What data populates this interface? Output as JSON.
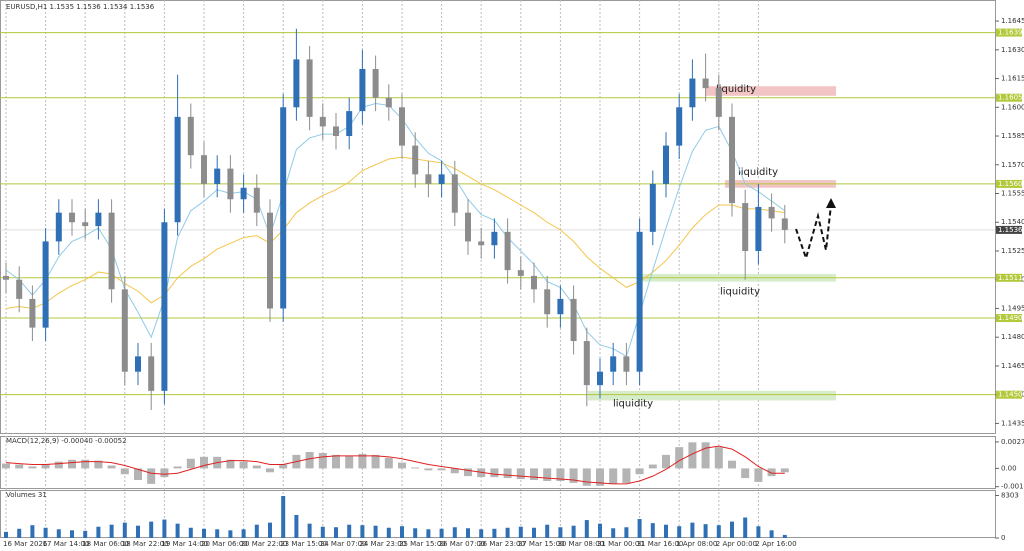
{
  "chart_data": [
    {
      "type": "candlestick",
      "title": "EURUSD,H1  1.1535 1.1536 1.1534 1.1536",
      "categories": [
        "16 Mar 2026",
        null,
        null,
        "17 Mar 14:00",
        null,
        null,
        "18 Mar 06:00",
        null,
        null,
        "18 Mar 22:00",
        null,
        null,
        "19 Mar 14:00",
        null,
        null,
        "20 Mar 06:00",
        null,
        null,
        "20 Mar 22:00",
        null,
        null,
        "23 Mar 15:00",
        null,
        null,
        "24 Mar 07:00",
        null,
        null,
        "24 Mar 23:00",
        null,
        null,
        "25 Mar 15:00",
        null,
        null,
        "26 Mar 07:00",
        null,
        null,
        "26 Mar 23:00",
        null,
        null,
        "27 Mar 15:00",
        null,
        null,
        "30 Mar 08:00",
        null,
        null,
        "31 Mar 00:00",
        null,
        null,
        "31 Mar 16:00",
        null,
        null,
        "1 Apr 08:00",
        null,
        null,
        "2 Apr 00:00",
        null,
        null,
        "2 Apr 16:00",
        null,
        null
      ],
      "open": [
        1.1512,
        1.151,
        1.15,
        1.1485,
        1.153,
        1.1545,
        1.154,
        1.1538,
        1.1545,
        1.1505,
        1.1462,
        1.147,
        1.1452,
        1.154,
        1.1595,
        1.1575,
        1.156,
        1.1568,
        1.1552,
        1.1558,
        1.1545,
        1.1495,
        1.16,
        1.1625,
        1.1595,
        1.159,
        1.1585,
        1.1598,
        1.162,
        1.1605,
        1.16,
        1.158,
        1.1565,
        1.156,
        1.1565,
        1.1545,
        1.153,
        1.1528,
        1.1535,
        1.1515,
        1.1512,
        1.1505,
        1.1492,
        1.15,
        1.1478,
        1.1455,
        1.1462,
        1.147,
        1.1462,
        1.1535,
        1.156,
        1.158,
        1.16,
        1.1615,
        1.161,
        1.1595,
        1.155,
        1.1525,
        1.1548,
        1.1542
      ],
      "high": [
        1.1519,
        1.1517,
        1.1507,
        1.1537,
        1.1552,
        1.1552,
        1.1547,
        1.1552,
        1.1552,
        1.1512,
        1.1477,
        1.1477,
        1.1547,
        1.1617,
        1.1602,
        1.1582,
        1.1575,
        1.1575,
        1.1565,
        1.1565,
        1.1552,
        1.1607,
        1.1641,
        1.1632,
        1.1602,
        1.1597,
        1.1605,
        1.163,
        1.1627,
        1.1612,
        1.1607,
        1.1587,
        1.1572,
        1.1572,
        1.1572,
        1.1552,
        1.1537,
        1.1542,
        1.1542,
        1.1522,
        1.1519,
        1.1512,
        1.1507,
        1.1507,
        1.1485,
        1.1469,
        1.1477,
        1.1477,
        1.1542,
        1.1567,
        1.1587,
        1.1607,
        1.1625,
        1.1628,
        1.1617,
        1.1602,
        1.1557,
        1.156,
        1.1555,
        1.1549
      ],
      "low": [
        1.1503,
        1.1493,
        1.1478,
        1.1478,
        1.1523,
        1.1533,
        1.1531,
        1.1531,
        1.1498,
        1.1455,
        1.1455,
        1.1442,
        1.1445,
        1.1533,
        1.1568,
        1.1553,
        1.1553,
        1.1545,
        1.1545,
        1.1538,
        1.1488,
        1.1488,
        1.1593,
        1.1588,
        1.1583,
        1.1578,
        1.1578,
        1.1591,
        1.1598,
        1.1593,
        1.1573,
        1.1558,
        1.1553,
        1.1553,
        1.1538,
        1.1523,
        1.1521,
        1.1521,
        1.1508,
        1.1505,
        1.1498,
        1.1485,
        1.1485,
        1.1471,
        1.1444,
        1.1448,
        1.1455,
        1.1455,
        1.1455,
        1.1528,
        1.1553,
        1.1573,
        1.1593,
        1.1603,
        1.1588,
        1.1543,
        1.151,
        1.1518,
        1.1535,
        1.1529
      ],
      "close": [
        1.151,
        1.15,
        1.1485,
        1.153,
        1.1545,
        1.154,
        1.1538,
        1.1545,
        1.1505,
        1.1462,
        1.147,
        1.1452,
        1.154,
        1.1595,
        1.1575,
        1.156,
        1.1568,
        1.1552,
        1.1558,
        1.1545,
        1.1495,
        1.16,
        1.1625,
        1.1595,
        1.159,
        1.1585,
        1.1598,
        1.162,
        1.1605,
        1.16,
        1.158,
        1.1565,
        1.156,
        1.1565,
        1.1545,
        1.153,
        1.1528,
        1.1535,
        1.1515,
        1.1512,
        1.1505,
        1.1492,
        1.15,
        1.1478,
        1.1455,
        1.1462,
        1.147,
        1.1462,
        1.1535,
        1.156,
        1.158,
        1.16,
        1.1615,
        1.161,
        1.1595,
        1.155,
        1.1525,
        1.1548,
        1.1542,
        1.1536
      ],
      "up_color": "#2e6fb5",
      "down_color": "#8c8c8c",
      "ma_fast": {
        "color": "#8fcbe6",
        "values": [
          1.1515,
          1.151,
          1.1502,
          1.151,
          1.1522,
          1.153,
          1.1533,
          1.1537,
          1.1526,
          1.1505,
          1.1493,
          1.148,
          1.15,
          1.1532,
          1.1546,
          1.1551,
          1.1557,
          1.1555,
          1.1556,
          1.1552,
          1.1533,
          1.1555,
          1.1578,
          1.1584,
          1.1586,
          1.1586,
          1.159,
          1.16,
          1.1602,
          1.1601,
          1.1594,
          1.1584,
          1.1576,
          1.1572,
          1.1563,
          1.1552,
          1.1544,
          1.1541,
          1.1532,
          1.1525,
          1.1518,
          1.1509,
          1.1506,
          1.1497,
          1.1483,
          1.1476,
          1.1474,
          1.147,
          1.1492,
          1.1515,
          1.1537,
          1.1558,
          1.1577,
          1.1588,
          1.159,
          1.1577,
          1.156,
          1.1556,
          1.1551,
          1.1546
        ]
      },
      "ma_slow": {
        "color": "#f3c54a",
        "values": [
          1.1495,
          1.1496,
          1.1495,
          1.1498,
          1.1503,
          1.1507,
          1.151,
          1.1514,
          1.1513,
          1.1508,
          1.1504,
          1.1498,
          1.1502,
          1.1511,
          1.1517,
          1.1521,
          1.1526,
          1.1529,
          1.1532,
          1.1533,
          1.1529,
          1.1536,
          1.1545,
          1.155,
          1.1554,
          1.1557,
          1.1561,
          1.1567,
          1.157,
          1.1573,
          1.1574,
          1.1573,
          1.1572,
          1.1571,
          1.1568,
          1.1564,
          1.156,
          1.1557,
          1.1553,
          1.1549,
          1.1545,
          1.154,
          1.1536,
          1.153,
          1.1522,
          1.1516,
          1.1511,
          1.1506,
          1.1509,
          1.1514,
          1.152,
          1.1528,
          1.1537,
          1.1544,
          1.1549,
          1.1549,
          1.1547,
          1.1547,
          1.1546,
          1.1545
        ]
      },
      "ylim": [
        1.143,
        1.1656
      ],
      "yticks": [
        1.1645,
        {
          "value": 1.163,
          "label": "1.1630"
        },
        1.1615,
        {
          "value": 1.16,
          "label": "1.1600"
        },
        1.1585,
        {
          "value": 1.157,
          "label": "1.1570"
        },
        1.1555,
        {
          "value": 1.154,
          "label": "1.1540"
        },
        1.1525,
        {
          "value": 1.151,
          "label": "1.1510"
        },
        1.1495,
        {
          "value": 1.148,
          "label": "1.1480"
        },
        1.1465,
        {
          "value": 1.145,
          "label": "1.1450"
        },
        1.1435
      ],
      "levels": [
        1.1639,
        1.1605,
        {
          "value": 1.156,
          "label": "1.1560"
        },
        1.1511,
        {
          "value": 1.149,
          "label": "1.1490"
        },
        {
          "value": 1.145,
          "label": "1.1450"
        }
      ],
      "level_color": "#b3c83a",
      "current": 1.1536,
      "zones": [
        {
          "label": "liquidity",
          "low": 1.1606,
          "high": 1.1611,
          "color": "#f2c4c4"
        },
        {
          "label": "liquidity",
          "low": 1.1558,
          "high": 1.1562,
          "color": "#f2c4c4"
        },
        {
          "label": "liquidity",
          "low": 1.1509,
          "high": 1.1513,
          "color": "#d6eccb"
        },
        {
          "label": "liquidity",
          "low": 1.1447,
          "high": 1.1452,
          "color": "#d6eccb"
        }
      ]
    },
    {
      "type": "macd",
      "title": "MACD(12,26,9) -0.00040 -0.00052",
      "values": [
        0.0005,
        0.0004,
        0.0002,
        0.0004,
        0.0007,
        0.0009,
        0.0009,
        0.0008,
        0.0003,
        -0.0006,
        -0.0012,
        -0.0016,
        -0.0009,
        0.0002,
        0.001,
        0.0012,
        0.0012,
        0.0009,
        0.0007,
        0.0003,
        -0.0004,
        0.0004,
        0.0014,
        0.0017,
        0.0016,
        0.0014,
        0.0013,
        0.0015,
        0.0014,
        0.0011,
        0.0006,
        0.0001,
        -0.0002,
        -0.0002,
        -0.0005,
        -0.0008,
        -0.0009,
        -0.0009,
        -0.001,
        -0.0011,
        -0.0012,
        -0.0013,
        -0.0013,
        -0.0015,
        -0.0018,
        -0.0018,
        -0.0016,
        -0.0015,
        -0.0006,
        0.0004,
        0.0014,
        0.0022,
        0.0027,
        0.0027,
        0.0022,
        0.0008,
        -0.001,
        -0.0014,
        -0.0008,
        -0.0004
      ],
      "color": "#b4b4b4",
      "signal": {
        "color": "#e02020",
        "values": [
          0.0006,
          0.0005,
          0.0004,
          0.0004,
          0.0005,
          0.0006,
          0.0007,
          0.0007,
          0.0006,
          0.0003,
          -0.0001,
          -0.0005,
          -0.0006,
          -0.0005,
          -0.0001,
          0.0003,
          0.0006,
          0.0008,
          0.0008,
          0.0007,
          0.0004,
          0.0004,
          0.0007,
          0.001,
          0.0012,
          0.0013,
          0.0013,
          0.0013,
          0.0013,
          0.0012,
          0.001,
          0.0007,
          0.0004,
          0.0002,
          0.0,
          -0.0002,
          -0.0004,
          -0.0006,
          -0.0007,
          -0.0008,
          -0.0009,
          -0.001,
          -0.0011,
          -0.0012,
          -0.0014,
          -0.0015,
          -0.0016,
          -0.0016,
          -0.0013,
          -0.0008,
          -0.0001,
          0.0008,
          0.0015,
          0.0021,
          0.0023,
          0.002,
          0.0012,
          0.0002,
          -0.0005,
          -0.0005
        ]
      },
      "ylim": [
        -0.00213,
        0.00325
      ],
      "yticks": [
        0.00274,
        {
          "value": 0,
          "label": "0.00"
        },
        -0.00189
      ]
    },
    {
      "type": "volume",
      "title": "Volumes 31",
      "values": [
        1200,
        1800,
        2500,
        2000,
        1700,
        1500,
        1400,
        2200,
        2600,
        3000,
        2400,
        3200,
        3600,
        2800,
        2000,
        1800,
        1700,
        1500,
        1700,
        2600,
        3000,
        8200,
        4500,
        2800,
        2200,
        2100,
        2600,
        2500,
        2400,
        2000,
        2300,
        1900,
        1700,
        1800,
        2100,
        1900,
        1700,
        1800,
        2000,
        2200,
        2000,
        2600,
        2100,
        2400,
        3500,
        2800,
        1900,
        2100,
        3700,
        2900,
        2600,
        2300,
        3000,
        2700,
        2500,
        3200,
        4000,
        2300,
        1500,
        600
      ],
      "color": "#2e6fb5",
      "ylim": [
        0,
        9180
      ],
      "yticks": [
        8303,
        0
      ]
    }
  ]
}
